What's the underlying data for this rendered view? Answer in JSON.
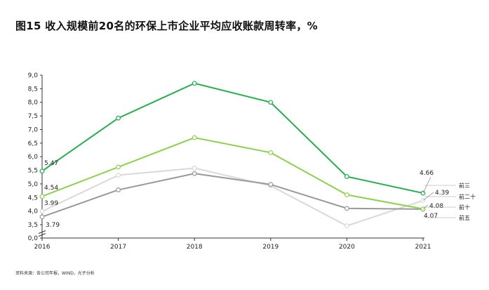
{
  "title": "图15 收入规模前20名的环保上市企业平均应收账款周转率，%",
  "source": "资料来源：各公司年报，WIND，光子分析",
  "chart_data": {
    "type": "line",
    "x": [
      "2016",
      "2017",
      "2018",
      "2019",
      "2020",
      "2021"
    ],
    "ylim": [
      0,
      9
    ],
    "yticks": [
      "0,0",
      "3,5",
      "4,0",
      "4,5",
      "5,0",
      "5,5",
      "6,0",
      "6,5",
      "7,0",
      "7,5",
      "8,0",
      "8,5",
      "9,0"
    ],
    "y_axis_break": true,
    "grid": false,
    "series": [
      {
        "name": "前三",
        "color": "#22b04b",
        "values": [
          5.47,
          7.42,
          8.7,
          8.0,
          5.27,
          4.66
        ]
      },
      {
        "name": "前十",
        "color": "#8fd14f",
        "values": [
          4.54,
          5.62,
          6.7,
          6.15,
          4.6,
          4.08
        ]
      },
      {
        "name": "前二十",
        "color": "#d9d9d9",
        "values": [
          3.99,
          5.32,
          5.58,
          4.93,
          3.2,
          4.39
        ]
      },
      {
        "name": "前五",
        "color": "#999999",
        "values": [
          3.79,
          4.78,
          5.38,
          4.98,
          4.1,
          4.07
        ]
      }
    ],
    "data_labels": [
      "5.47",
      "4.54",
      "3.99",
      "3.79",
      "4.66",
      "4.39",
      "4.08",
      "4.07"
    ]
  }
}
